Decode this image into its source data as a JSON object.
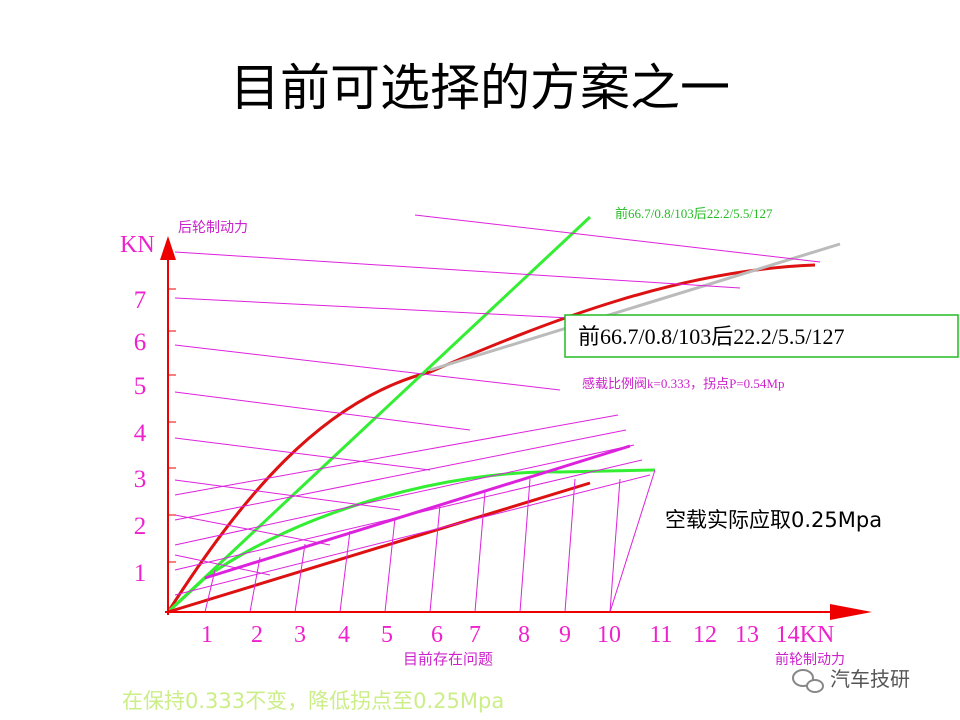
{
  "header": {
    "title": "目前可选择的方案之一"
  },
  "axes": {
    "y_unit": "KN",
    "y_label": "后轮制动力",
    "y_ticks": [
      "1",
      "2",
      "3",
      "4",
      "5",
      "6",
      "7"
    ],
    "x_ticks": [
      "1",
      "2",
      "3",
      "4",
      "5",
      "6",
      "7",
      "8",
      "9",
      "10",
      "11",
      "12",
      "13",
      "14KN"
    ],
    "x_label": "前轮制动力",
    "x_caption": "目前存在问题"
  },
  "annotations": {
    "green_spec": "前66.7/0.8/103后22.2/5.5/127",
    "box_spec": "前66.7/0.8/103后22.2/5.5/127",
    "valve": "感载比例阀k=0.333，拐点P=0.54Mp",
    "empty_load": "空载实际应取0.25Mpa"
  },
  "footer": {
    "note": "在保持0.333不变，降低拐点至0.25Mpa",
    "watermark": "汽车技研"
  }
}
